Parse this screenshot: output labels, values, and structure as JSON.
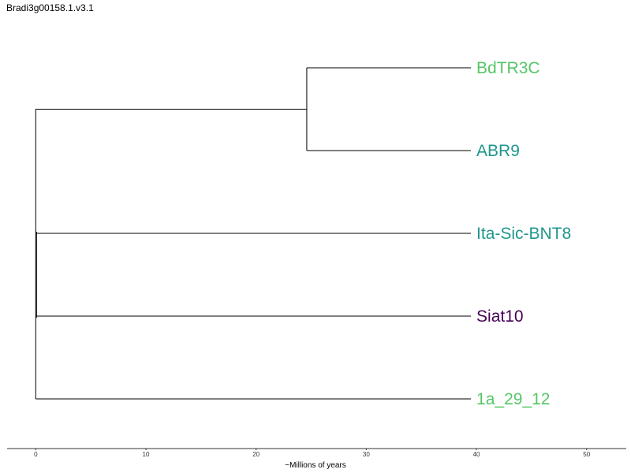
{
  "title": "Bradi3g00158.1.v3.1",
  "axis": {
    "label": "~Millions of years",
    "range": [
      -2.6,
      53.6
    ],
    "ticks": [
      0,
      10,
      20,
      30,
      40,
      50
    ]
  },
  "tree": {
    "root_x": 0,
    "tip_x": 39.5,
    "clade": {
      "x": 24.6,
      "children": [
        "BdTR3C",
        "ABR9"
      ]
    },
    "tips": [
      {
        "label": "BdTR3C",
        "color": "#55c667"
      },
      {
        "label": "ABR9",
        "color": "#1f968b"
      },
      {
        "label": "Ita-Sic-BNT8",
        "color": "#1f968b"
      },
      {
        "label": "Siat10",
        "color": "#440154"
      },
      {
        "label": "1a_29_12",
        "color": "#55c667"
      }
    ]
  }
}
